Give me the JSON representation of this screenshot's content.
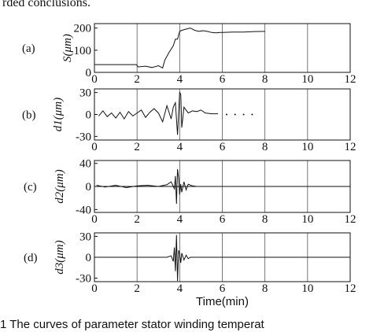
{
  "top_text": "rded conclusions.",
  "caption": "1   The curves of parameter stator winding temperat",
  "xlabel": "Time(min)",
  "chart_data": [
    {
      "type": "line",
      "panel_label": "(a)",
      "ylabel": "S(μm)",
      "xlim": [
        0,
        12
      ],
      "ylim": [
        0,
        220
      ],
      "xticks": [
        "0",
        "2",
        "4",
        "6",
        "8",
        "10",
        "12"
      ],
      "yticks": [
        {
          "v": 200,
          "t": "200"
        },
        {
          "v": 100,
          "t": "100"
        },
        {
          "v": 0,
          "t": "0"
        }
      ],
      "grid": true,
      "series": [
        {
          "x": [
            0,
            1.97,
            2.05,
            2.4,
            2.7,
            3.0,
            3.2,
            3.3,
            3.5,
            3.7,
            3.8,
            3.9,
            4.0,
            4.1,
            4.3,
            4.5,
            4.7,
            4.9,
            5.1,
            5.3,
            5.5,
            5.7,
            5.9,
            6.0,
            6.5,
            7.0,
            7.5,
            8.0
          ],
          "y": [
            35,
            35,
            25,
            28,
            22,
            30,
            20,
            55,
            90,
            120,
            150,
            150,
            185,
            190,
            195,
            200,
            190,
            185,
            188,
            185,
            180,
            178,
            180,
            180,
            182,
            182,
            184,
            185
          ]
        }
      ]
    },
    {
      "type": "line",
      "panel_label": "(b)",
      "ylabel": "d1(μm)",
      "xlim": [
        0,
        12
      ],
      "ylim": [
        -35,
        35
      ],
      "xticks": [
        "0",
        "2",
        "4",
        "6",
        "8",
        "10",
        "12"
      ],
      "yticks": [
        {
          "v": 30,
          "t": "30"
        },
        {
          "v": 0,
          "t": "0"
        },
        {
          "v": -30,
          "t": "-30"
        }
      ],
      "grid": true,
      "series": [
        {
          "x": [
            0.2,
            0.4,
            0.6,
            0.8,
            1.0,
            1.2,
            1.4,
            1.6,
            1.8,
            2.0,
            2.2,
            2.4,
            2.6,
            2.8,
            3.0,
            3.2,
            3.4,
            3.6,
            3.7,
            3.8,
            3.9,
            4.0,
            4.05,
            4.1,
            4.2,
            4.3,
            4.4,
            4.6,
            4.8,
            5.0,
            5.2,
            5.5,
            5.8
          ],
          "y": [
            -2,
            5,
            -3,
            2,
            -5,
            3,
            -6,
            4,
            -2,
            2,
            6,
            -4,
            3,
            8,
            2,
            -10,
            12,
            -6,
            10,
            16,
            -28,
            30,
            28,
            -18,
            10,
            6,
            2,
            5,
            4,
            6,
            2,
            1,
            1
          ]
        },
        {
          "style": "dots",
          "x": [
            6.2,
            6.6,
            7.0,
            7.4
          ],
          "y": [
            0,
            0,
            0,
            0
          ]
        }
      ]
    },
    {
      "type": "line",
      "panel_label": "(c)",
      "ylabel": "d2(μm)",
      "xlim": [
        0,
        12
      ],
      "ylim": [
        -45,
        45
      ],
      "xticks": [
        "0",
        "2",
        "4",
        "6",
        "8",
        "10",
        "12"
      ],
      "yticks": [
        {
          "v": 40,
          "t": "40"
        },
        {
          "v": 0,
          "t": "0"
        },
        {
          "v": -40,
          "t": "-40"
        }
      ],
      "grid": true,
      "series": [
        {
          "x": [
            0.1,
            0.5,
            1.0,
            1.5,
            2.0,
            2.5,
            3.0,
            3.4,
            3.6,
            3.75,
            3.8,
            3.85,
            3.9,
            3.95,
            4.0,
            4.05,
            4.1,
            4.2,
            4.3,
            4.4,
            4.6,
            4.8
          ],
          "y": [
            2,
            -1,
            2,
            -2,
            1,
            2,
            0,
            3,
            8,
            -4,
            18,
            -30,
            30,
            15,
            -14,
            4,
            -10,
            8,
            -6,
            4,
            1,
            0
          ]
        },
        {
          "style": "baseline",
          "x": [
            0,
            12
          ],
          "y": [
            0,
            0
          ]
        }
      ]
    },
    {
      "type": "line",
      "panel_label": "(d)",
      "ylabel": "d3(μm)",
      "xlim": [
        0,
        12
      ],
      "ylim": [
        -35,
        35
      ],
      "xticks": [
        "0",
        "2",
        "4",
        "6",
        "8",
        "10",
        "12"
      ],
      "yticks": [
        {
          "v": 30,
          "t": "30"
        },
        {
          "v": 0,
          "t": "0"
        },
        {
          "v": -30,
          "t": "-30"
        }
      ],
      "grid": true,
      "series": [
        {
          "x": [
            0,
            3.4,
            3.6,
            3.7,
            3.75,
            3.8,
            3.85,
            3.9,
            3.95,
            4.0,
            4.05,
            4.1,
            4.2,
            4.3,
            4.4,
            4.5,
            4.8,
            12
          ],
          "y": [
            0,
            0,
            2,
            -6,
            14,
            -20,
            32,
            -34,
            10,
            5,
            -8,
            6,
            -4,
            3,
            -2,
            0,
            0,
            0
          ]
        }
      ]
    }
  ]
}
